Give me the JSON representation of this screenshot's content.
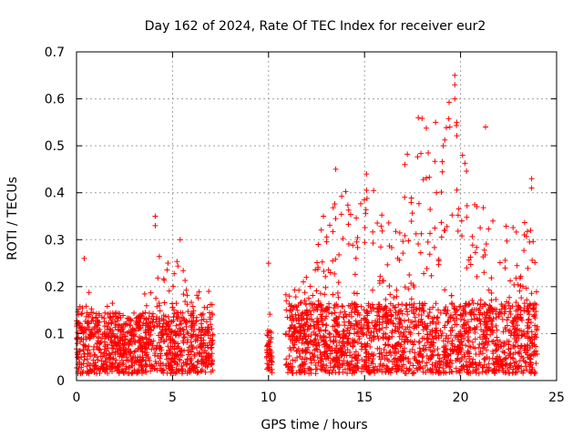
{
  "chart_data": {
    "type": "scatter",
    "title": "Day 162 of 2024, Rate Of TEC Index for receiver eur2",
    "xlabel": "GPS time / hours",
    "ylabel": "ROTI / TECUs",
    "xlim": [
      0,
      25
    ],
    "ylim": [
      0,
      0.7
    ],
    "xticks": [
      0,
      5,
      10,
      15,
      20,
      25
    ],
    "yticks": [
      0,
      0.1,
      0.2,
      0.3,
      0.4,
      0.5,
      0.6,
      0.7
    ],
    "grid": true,
    "marker": "+",
    "color": "#ff0000",
    "density_profile": [
      {
        "t0": 0.0,
        "t1": 7.1,
        "base_max": 0.13,
        "envelope": [
          [
            0.0,
            0.16
          ],
          [
            0.5,
            0.19
          ],
          [
            1.5,
            0.19
          ],
          [
            2.5,
            0.14
          ],
          [
            3.5,
            0.17
          ],
          [
            4.1,
            0.35
          ],
          [
            4.5,
            0.24
          ],
          [
            5.3,
            0.3
          ],
          [
            6.0,
            0.2
          ],
          [
            7.0,
            0.19
          ]
        ]
      },
      {
        "t0": 9.9,
        "t1": 10.2,
        "base_max": 0.09,
        "envelope": [
          [
            9.9,
            0.25
          ],
          [
            10.2,
            0.18
          ]
        ]
      },
      {
        "t0": 10.9,
        "t1": 24.0,
        "base_max": 0.15,
        "envelope": [
          [
            11.0,
            0.19
          ],
          [
            12.0,
            0.25
          ],
          [
            13.0,
            0.37
          ],
          [
            13.5,
            0.45
          ],
          [
            14.5,
            0.37
          ],
          [
            15.0,
            0.44
          ],
          [
            16.0,
            0.37
          ],
          [
            17.0,
            0.46
          ],
          [
            18.0,
            0.56
          ],
          [
            19.0,
            0.5
          ],
          [
            19.6,
            0.65
          ],
          [
            20.0,
            0.48
          ],
          [
            21.0,
            0.42
          ],
          [
            21.5,
            0.35
          ],
          [
            22.0,
            0.33
          ],
          [
            23.0,
            0.37
          ],
          [
            23.5,
            0.43
          ],
          [
            24.0,
            0.2
          ]
        ]
      }
    ],
    "highlight_points": [
      {
        "x": 0.4,
        "y": 0.26
      },
      {
        "x": 4.1,
        "y": 0.35
      },
      {
        "x": 4.1,
        "y": 0.33
      },
      {
        "x": 5.4,
        "y": 0.3
      },
      {
        "x": 10.0,
        "y": 0.25
      },
      {
        "x": 13.5,
        "y": 0.45
      },
      {
        "x": 15.1,
        "y": 0.44
      },
      {
        "x": 17.1,
        "y": 0.46
      },
      {
        "x": 17.8,
        "y": 0.56
      },
      {
        "x": 18.7,
        "y": 0.55
      },
      {
        "x": 19.1,
        "y": 0.5
      },
      {
        "x": 19.7,
        "y": 0.65
      },
      {
        "x": 19.7,
        "y": 0.63
      },
      {
        "x": 19.7,
        "y": 0.6
      },
      {
        "x": 19.8,
        "y": 0.55
      },
      {
        "x": 20.1,
        "y": 0.48
      },
      {
        "x": 21.3,
        "y": 0.54
      },
      {
        "x": 23.7,
        "y": 0.43
      },
      {
        "x": 23.7,
        "y": 0.41
      }
    ]
  }
}
